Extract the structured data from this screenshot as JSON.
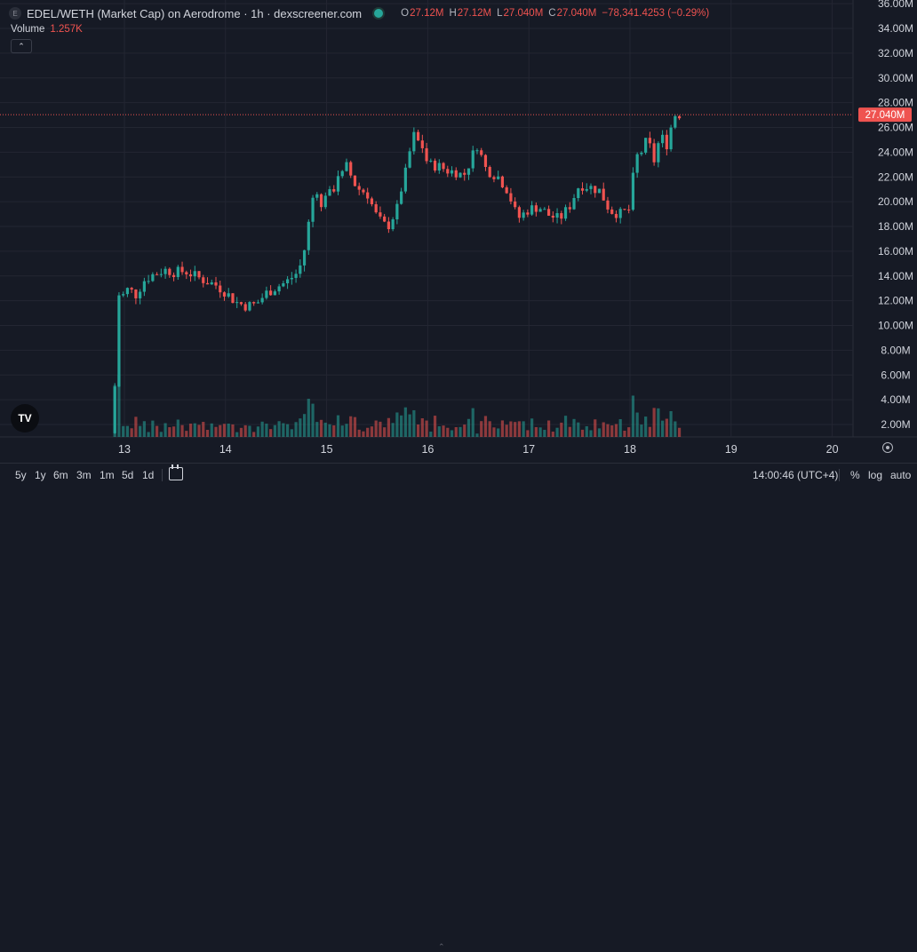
{
  "legend": {
    "logo_letter": "E",
    "title": "EDEL/WETH (Market Cap) on Aerodrome · 1h · dexscreener.com",
    "o_label": "O",
    "o_value": "27.12M",
    "h_label": "H",
    "h_value": "27.12M",
    "l_label": "L",
    "l_value": "27.040M",
    "c_label": "C",
    "c_value": "27.040M",
    "change": "−78,341.4253 (−0.29%)"
  },
  "volume_legend": {
    "label": "Volume",
    "value": "1.257K"
  },
  "colors": {
    "background": "#161a25",
    "up": "#26a69a",
    "down": "#ef5350",
    "grid": "#232632",
    "text": "#d1d4dc"
  },
  "price_label": "27.040M",
  "collapse_icon": "chevron-up-icon",
  "logo_text": "TV",
  "bottom": {
    "timeframes": [
      "5y",
      "1y",
      "6m",
      "3m",
      "1m",
      "5d",
      "1d"
    ],
    "clock": "14:00:46 (UTC+4)",
    "percent": "%",
    "log": "log",
    "auto": "auto"
  },
  "chart_data": {
    "type": "candlestick",
    "title": "EDEL/WETH (Market Cap) on Aerodrome · 1h · dexscreener.com",
    "x_ticks": [
      "13",
      "14",
      "15",
      "16",
      "17",
      "18",
      "19",
      "20"
    ],
    "y_ticks": [
      "2.00M",
      "4.00M",
      "6.00M",
      "8.00M",
      "10.00M",
      "12.00M",
      "14.00M",
      "16.00M",
      "18.00M",
      "20.00M",
      "22.00M",
      "24.00M",
      "26.00M",
      "28.00M",
      "30.00M",
      "32.00M",
      "34.00M",
      "36.00M"
    ],
    "y_range_millions": [
      1,
      36.3
    ],
    "x_range_days": [
      12.95,
      20.04
    ],
    "last_price_millions": 27.04,
    "volume_max": 1,
    "series": [
      {
        "name": "OHLC",
        "close_path_millions": [
          [
            12.9,
            1.3
          ],
          [
            12.92,
            16.4
          ],
          [
            12.95,
            12.0
          ],
          [
            13.0,
            12.6
          ],
          [
            13.05,
            13.1
          ],
          [
            13.1,
            12.3
          ],
          [
            13.2,
            13.7
          ],
          [
            13.3,
            14.2
          ],
          [
            13.4,
            14.5
          ],
          [
            13.5,
            14.3
          ],
          [
            13.6,
            14.4
          ],
          [
            13.7,
            14.0
          ],
          [
            13.8,
            13.6
          ],
          [
            13.9,
            13.3
          ],
          [
            14.0,
            12.7
          ],
          [
            14.1,
            11.9
          ],
          [
            14.2,
            11.6
          ],
          [
            14.3,
            11.7
          ],
          [
            14.4,
            12.6
          ],
          [
            14.5,
            13.1
          ],
          [
            14.6,
            13.5
          ],
          [
            14.7,
            14.2
          ],
          [
            14.75,
            15.0
          ],
          [
            14.8,
            16.9
          ],
          [
            14.85,
            20.0
          ],
          [
            14.9,
            21.2
          ],
          [
            14.95,
            19.3
          ],
          [
            15.0,
            21.2
          ],
          [
            15.05,
            20.2
          ],
          [
            15.1,
            22.3
          ],
          [
            15.15,
            22.1
          ],
          [
            15.2,
            22.9
          ],
          [
            15.25,
            21.9
          ],
          [
            15.3,
            21.1
          ],
          [
            15.4,
            20.7
          ],
          [
            15.5,
            18.7
          ],
          [
            15.6,
            17.9
          ],
          [
            15.7,
            19.5
          ],
          [
            15.75,
            21.5
          ],
          [
            15.8,
            22.9
          ],
          [
            15.85,
            25.5
          ],
          [
            15.9,
            24.9
          ],
          [
            15.95,
            24.4
          ],
          [
            16.0,
            23.0
          ],
          [
            16.1,
            22.9
          ],
          [
            16.2,
            22.5
          ],
          [
            16.3,
            22.4
          ],
          [
            16.35,
            22.0
          ],
          [
            16.4,
            22.9
          ],
          [
            16.45,
            23.9
          ],
          [
            16.5,
            24.8
          ],
          [
            16.55,
            22.9
          ],
          [
            16.6,
            22.5
          ],
          [
            16.7,
            22.0
          ],
          [
            16.8,
            20.8
          ],
          [
            16.85,
            19.4
          ],
          [
            16.9,
            18.7
          ],
          [
            17.0,
            19.4
          ],
          [
            17.1,
            19.6
          ],
          [
            17.2,
            18.9
          ],
          [
            17.3,
            18.6
          ],
          [
            17.4,
            19.6
          ],
          [
            17.5,
            21.4
          ],
          [
            17.6,
            21.2
          ],
          [
            17.7,
            20.9
          ],
          [
            17.8,
            19.3
          ],
          [
            17.9,
            19.0
          ],
          [
            18.0,
            19.4
          ],
          [
            18.05,
            23.6
          ],
          [
            18.1,
            23.8
          ],
          [
            18.15,
            24.8
          ],
          [
            18.2,
            24.4
          ],
          [
            18.25,
            23.0
          ],
          [
            18.3,
            25.8
          ],
          [
            18.35,
            24.2
          ],
          [
            18.4,
            25.9
          ],
          [
            18.45,
            27.12
          ],
          [
            18.5,
            27.04
          ]
        ]
      }
    ]
  }
}
